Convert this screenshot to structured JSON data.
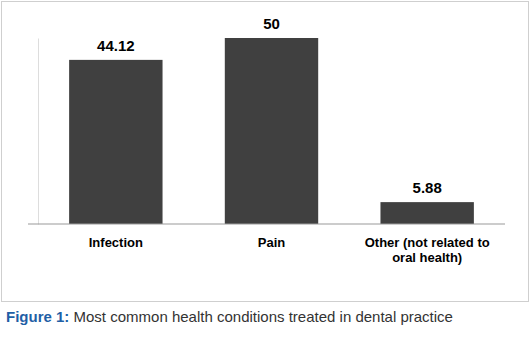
{
  "chart_data": {
    "type": "bar",
    "title": "Figure 1: Most common health conditions treated in dental practice",
    "categories": [
      "Infection",
      "Pain",
      "Other (not related to oral health)"
    ],
    "values": [
      44.12,
      50,
      5.88
    ],
    "color": "#404040",
    "ylim": [
      0,
      50
    ],
    "yticks": [],
    "grid": false,
    "data_labels": true,
    "tick_labels": "x"
  }
}
